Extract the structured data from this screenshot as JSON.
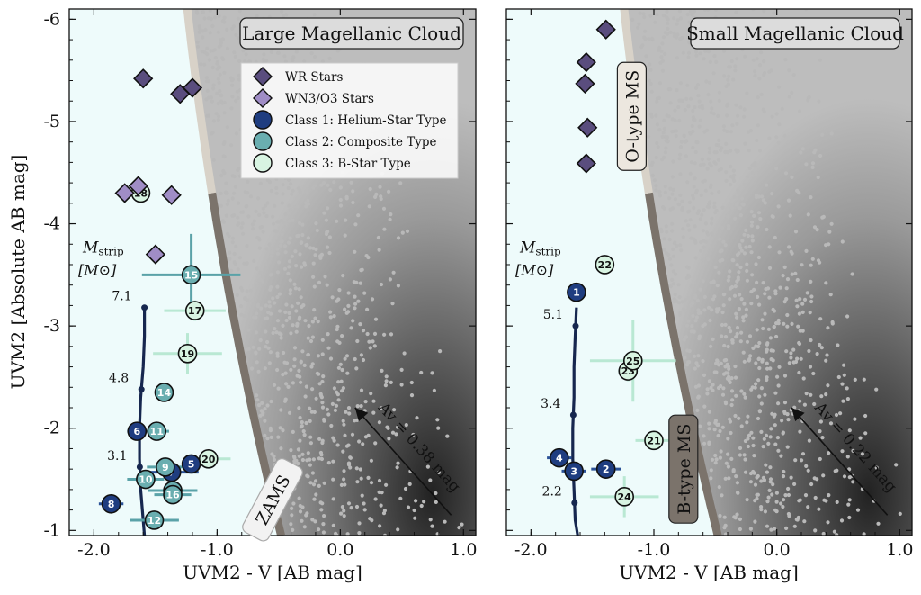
{
  "figure": {
    "colors": {
      "wr": "#5a4d7e",
      "wn3": "#a08dc6",
      "class1": "#1f3d80",
      "class2": "#6aaeb0",
      "class3": "#d8f4e2",
      "track": "#16274f",
      "zams_lower": "#7b736b",
      "zams_upper": "#d8d2c8",
      "region_fill": "#eefbfb",
      "cloud": "#b9b9b9"
    }
  },
  "chart_data": [
    {
      "type": "scatter",
      "title": "Large Magellanic Cloud",
      "xlabel": "UVM2 - V [AB mag]",
      "ylabel": "UVM2 [Absolute AB mag]",
      "xlim": [
        -2.2,
        1.1
      ],
      "ylim": [
        -0.95,
        -6.1
      ],
      "xticks": [
        -2.0,
        -1.0,
        0.0,
        1.0
      ],
      "xtick_labels": [
        "-2.0",
        "-1.0",
        "0.0",
        "1.0"
      ],
      "yticks": [
        -6,
        -5,
        -4,
        -3,
        -2,
        -1
      ],
      "ytick_labels": [
        "-6",
        "-5",
        "-4",
        "-3",
        "-2",
        "-1"
      ],
      "legend": {
        "position": "top-right",
        "entries": [
          "WR Stars",
          "WN3/O3 Stars",
          "Class 1: Helium-Star Type",
          "Class 2: Composite Type",
          "Class 3: B-Star Type"
        ]
      },
      "wr_stars": [
        {
          "x": -1.6,
          "y": -5.42
        },
        {
          "x": -1.3,
          "y": -5.27
        },
        {
          "x": -1.2,
          "y": -5.33
        }
      ],
      "wn3_stars": [
        {
          "x": -1.75,
          "y": -4.3
        },
        {
          "x": -1.64,
          "y": -4.37
        },
        {
          "x": -1.37,
          "y": -4.28
        },
        {
          "x": -1.5,
          "y": -3.7
        }
      ],
      "stars": [
        {
          "id": "1",
          "label": "",
          "class": 0
        },
        {
          "id": "5",
          "x": -1.21,
          "y": -1.65,
          "class": 1,
          "xerr": 0.05,
          "yerr": 0.04
        },
        {
          "id": "6",
          "x": -1.65,
          "y": -1.97,
          "class": 1,
          "xerr": 0.08,
          "yerr": 0.05
        },
        {
          "id": "7",
          "x": -1.37,
          "y": -1.57,
          "class": 1,
          "xerr": 0.22,
          "yerr": 0.05
        },
        {
          "id": "8",
          "x": -1.86,
          "y": -1.26,
          "class": 1,
          "xerr": 0.1,
          "yerr": 0.04
        },
        {
          "id": "9",
          "x": -1.42,
          "y": -1.62,
          "class": 2,
          "xerr": 0.15,
          "yerr": 0.05
        },
        {
          "id": "10",
          "x": -1.58,
          "y": -1.5,
          "class": 2,
          "xerr": 0.15,
          "yerr": 0.05
        },
        {
          "id": "11",
          "x": -1.49,
          "y": -1.97,
          "class": 2,
          "xerr": 0.1,
          "yerr": 0.06
        },
        {
          "id": "12",
          "x": -1.51,
          "y": -1.1,
          "class": 2,
          "xerr": 0.2,
          "yerr": 0.05
        },
        {
          "id": "13",
          "x": -1.36,
          "y": -1.39,
          "class": 2,
          "xerr": 0.2,
          "yerr": 0.06
        },
        {
          "id": "14",
          "x": -1.43,
          "y": -2.35,
          "class": 2,
          "xerr": 0.06,
          "yerr": 0.05
        },
        {
          "id": "15",
          "x": -1.21,
          "y": -3.5,
          "class": 2,
          "xerr": 0.4,
          "yerr": 0.4
        },
        {
          "id": "16",
          "x": -1.36,
          "y": -1.35,
          "class": 2,
          "xerr": 0.15,
          "yerr": 0.05
        },
        {
          "id": "17",
          "x": -1.18,
          "y": -3.15,
          "class": 3,
          "xerr": 0.25,
          "yerr": 0.1
        },
        {
          "id": "18",
          "x": -1.62,
          "y": -4.3,
          "class": 3,
          "xerr": 0.05,
          "yerr": 0.04
        },
        {
          "id": "19",
          "x": -1.24,
          "y": -2.73,
          "class": 3,
          "xerr": 0.28,
          "yerr": 0.2
        },
        {
          "id": "20",
          "x": -1.07,
          "y": -1.7,
          "class": 3,
          "xerr": 0.18,
          "yerr": 0.05
        }
      ],
      "track": {
        "x": [
          -1.59,
          -1.59,
          -1.6,
          -1.62,
          -1.63,
          -1.63,
          -1.62,
          -1.6,
          -1.59
        ],
        "y": [
          -3.18,
          -2.9,
          -2.6,
          -2.3,
          -2.0,
          -1.7,
          -1.4,
          -1.1,
          -0.95
        ]
      },
      "mass_labels": [
        {
          "text": "7.1",
          "y": -3.18
        },
        {
          "text": "4.8",
          "y": -2.38
        },
        {
          "text": "3.1",
          "y": -1.62
        }
      ],
      "mass_header": "M_strip [M_sun]",
      "zams_label": "ZAMS",
      "extinction": "Av = 0.38 mag"
    },
    {
      "type": "scatter",
      "title": "Small Magellanic Cloud",
      "xlabel": "UVM2 - V [AB mag]",
      "xlim": [
        -2.2,
        1.1
      ],
      "ylim": [
        -0.95,
        -6.1
      ],
      "xticks": [
        -2.0,
        -1.0,
        0.0,
        1.0
      ],
      "xtick_labels": [
        "-2.0",
        "-1.0",
        "0.0",
        "1.0"
      ],
      "wr_stars": [
        {
          "x": -1.39,
          "y": -5.9
        },
        {
          "x": -1.55,
          "y": -5.58
        },
        {
          "x": -1.56,
          "y": -5.37
        },
        {
          "x": -1.54,
          "y": -4.94
        },
        {
          "x": -1.55,
          "y": -4.59
        }
      ],
      "stars": [
        {
          "id": "1",
          "x": -1.63,
          "y": -3.33,
          "class": 1,
          "xerr": 0.05,
          "yerr": 0.04
        },
        {
          "id": "2",
          "x": -1.39,
          "y": -1.6,
          "class": 1,
          "xerr": 0.12,
          "yerr": 0.04
        },
        {
          "id": "3",
          "x": -1.65,
          "y": -1.58,
          "class": 1,
          "xerr": 0.1,
          "yerr": 0.04
        },
        {
          "id": "4",
          "x": -1.77,
          "y": -1.71,
          "class": 1,
          "xerr": 0.1,
          "yerr": 0.04
        },
        {
          "id": "21",
          "x": -1.0,
          "y": -1.88,
          "class": 3,
          "xerr": 0.15,
          "yerr": 0.05
        },
        {
          "id": "22",
          "x": -1.4,
          "y": -3.6,
          "class": 3,
          "xerr": 0.05,
          "yerr": 0.04
        },
        {
          "id": "23",
          "x": -1.21,
          "y": -2.56,
          "class": 3,
          "xerr": 0.08,
          "yerr": 0.1
        },
        {
          "id": "24",
          "x": -1.24,
          "y": -1.33,
          "class": 3,
          "xerr": 0.28,
          "yerr": 0.2
        },
        {
          "id": "25",
          "x": -1.17,
          "y": -2.66,
          "class": 3,
          "xerr": 0.35,
          "yerr": 0.4
        }
      ],
      "track": {
        "x": [
          -1.63,
          -1.64,
          -1.65,
          -1.65,
          -1.66,
          -1.66,
          -1.65,
          -1.64,
          -1.62
        ],
        "y": [
          -3.18,
          -2.9,
          -2.6,
          -2.3,
          -2.0,
          -1.7,
          -1.4,
          -1.1,
          -0.95
        ]
      },
      "mass_labels": [
        {
          "text": "5.1",
          "y": -3.0
        },
        {
          "text": "3.4",
          "y": -2.13
        },
        {
          "text": "2.2",
          "y": -1.27
        }
      ],
      "mass_header": "M_strip [M_sun]",
      "upper_ms_label": "O-type MS",
      "lower_ms_label": "B-type MS",
      "extinction": "Av = 0.22 mag"
    }
  ]
}
